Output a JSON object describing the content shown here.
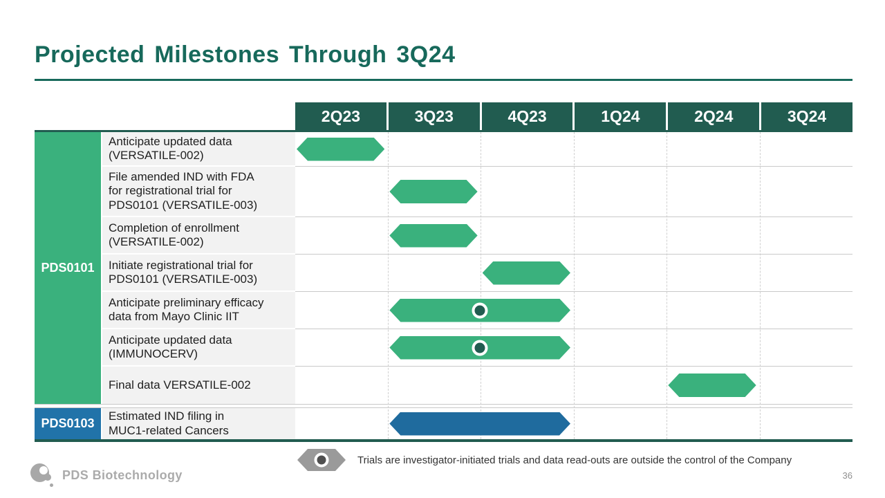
{
  "slide": {
    "title": "Projected Milestones Through 3Q24",
    "page_number": "36"
  },
  "colors": {
    "teal_dark": "#215C50",
    "title_teal": "#17695B",
    "green": "#3AB17D",
    "blue_bar": "#1F6B9E",
    "blue_cell": "#2173A9",
    "label_bg": "#F2F2F2",
    "row_line": "#C9C9C9",
    "legend_gray": "#9A9A9A",
    "brand_gray": "#ABABAB"
  },
  "chart_data": {
    "type": "table",
    "subtype": "gantt-timeline",
    "title": "Projected Milestones Through 3Q24",
    "categories": [
      "2Q23",
      "3Q23",
      "4Q23",
      "1Q24",
      "2Q24",
      "3Q24"
    ],
    "legend_position": "bottom",
    "groups": [
      {
        "label": "PDS0101",
        "color_key": "green",
        "milestones": [
          {
            "label": "Anticipate updated data\n(VERSATILE-002)",
            "start": "2Q23",
            "end": "2Q23",
            "investigator_initiated": false
          },
          {
            "label": "File amended IND with FDA\nfor registrational trial for\nPDS0101 (VERSATILE-003)",
            "start": "3Q23",
            "end": "3Q23",
            "investigator_initiated": false
          },
          {
            "label": "Completion of enrollment\n(VERSATILE-002)",
            "start": "3Q23",
            "end": "3Q23",
            "investigator_initiated": false
          },
          {
            "label": "Initiate registrational trial for\nPDS0101 (VERSATILE-003)",
            "start": "4Q23",
            "end": "4Q23",
            "investigator_initiated": false
          },
          {
            "label": "Anticipate preliminary efficacy\ndata from Mayo Clinic IIT",
            "start": "3Q23",
            "end": "4Q23",
            "investigator_initiated": true
          },
          {
            "label": "Anticipate updated data\n(IMMUNOCERV)",
            "start": "3Q23",
            "end": "4Q23",
            "investigator_initiated": true
          },
          {
            "label": "Final data VERSATILE-002",
            "start": "2Q24",
            "end": "2Q24",
            "investigator_initiated": false
          }
        ]
      },
      {
        "label": "PDS0103",
        "color_key": "blue",
        "milestones": [
          {
            "label": "Estimated IND filing in\nMUC1-related Cancers",
            "start": "3Q23",
            "end": "4Q23",
            "investigator_initiated": false
          }
        ]
      }
    ]
  },
  "legend": {
    "text": "Trials are investigator-initiated trials and data read-outs are outside the control of the Company"
  },
  "footer": {
    "brand": "PDS Biotechnology"
  }
}
